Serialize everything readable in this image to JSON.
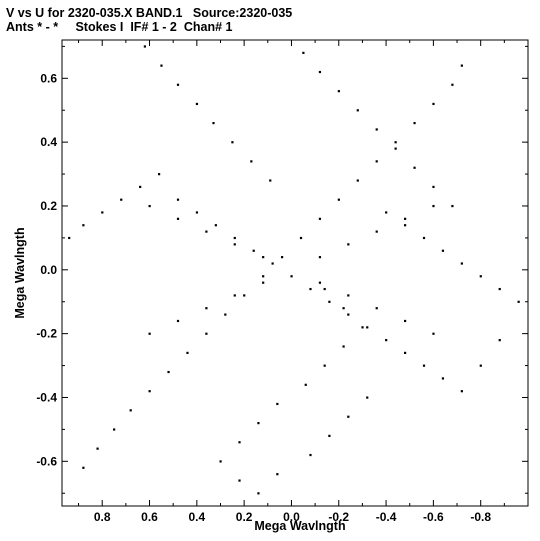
{
  "header": {
    "line1": "V vs U for 2320-035.X BAND.1   Source:2320-035",
    "line2": "Ants * - *     Stokes I  IF# 1 - 2  Chan# 1"
  },
  "chart_data": {
    "type": "scatter",
    "title": "V vs U for 2320-035.X BAND.1   Source:2320-035",
    "subtitle": "Ants * - *     Stokes I  IF# 1 - 2  Chan# 1",
    "xlabel": "Mega Wavlngth",
    "ylabel": "Mega Wavlngth",
    "xlim": [
      0.97,
      -1.0
    ],
    "ylim": [
      -0.74,
      0.72
    ],
    "x_ticks": [
      0.8,
      0.6,
      0.4,
      0.2,
      0.0,
      -0.2,
      -0.4,
      -0.6,
      -0.8
    ],
    "x_tick_labels": [
      "0.8",
      "0.6",
      "0.4",
      "0.2",
      "0.0",
      "-0.2",
      "-0.4",
      "-0.6",
      "-0.8"
    ],
    "y_ticks": [
      0.6,
      0.4,
      0.2,
      0.0,
      -0.2,
      -0.4,
      -0.6
    ],
    "y_tick_labels": [
      "0.6",
      "0.4",
      "0.2",
      "0.0",
      "-0.2",
      "-0.4",
      "-0.6"
    ],
    "grid": false,
    "marker_color": "#000000",
    "series": [
      {
        "x": [
          0.62,
          0.55,
          0.48,
          0.4,
          0.33,
          0.25,
          0.17,
          0.09,
          -0.05,
          -0.12,
          -0.2,
          -0.28,
          -0.36,
          -0.44,
          -0.52,
          -0.6,
          -0.68,
          -0.72,
          -0.68,
          -0.6,
          -0.52,
          -0.44,
          -0.36,
          -0.28,
          -0.2,
          -0.12,
          -0.04,
          0.04,
          0.12,
          0.2,
          0.28,
          0.36,
          0.44,
          0.52,
          0.6,
          0.68,
          0.75,
          0.82,
          0.88,
          0.94,
          0.88,
          0.8,
          0.72,
          0.64,
          0.56,
          0.48,
          0.4,
          0.32,
          0.24,
          0.16,
          0.08,
          0.0,
          -0.08,
          -0.16,
          -0.24,
          -0.32,
          -0.4,
          -0.48,
          -0.56,
          -0.64,
          -0.72,
          -0.8,
          -0.88,
          -0.96,
          -0.88,
          -0.8,
          -0.72,
          -0.64,
          -0.56,
          -0.48,
          -0.4,
          -0.32,
          -0.24,
          -0.16,
          -0.08,
          0.06,
          0.14,
          0.22,
          0.3,
          0.22,
          0.14,
          0.06,
          -0.06,
          -0.14,
          -0.22,
          -0.3,
          -0.22,
          -0.14,
          0.12,
          0.24,
          0.36,
          0.48,
          0.6,
          -0.12,
          -0.24,
          -0.36,
          -0.48,
          -0.6,
          0.12,
          0.24,
          0.36,
          0.48,
          0.6,
          -0.12,
          -0.24,
          -0.36,
          -0.48,
          -0.6
        ],
        "y": [
          0.7,
          0.64,
          0.58,
          0.52,
          0.46,
          0.4,
          0.34,
          0.28,
          0.68,
          0.62,
          0.56,
          0.5,
          0.44,
          0.38,
          0.32,
          0.26,
          0.2,
          0.64,
          0.58,
          0.52,
          0.46,
          0.4,
          0.34,
          0.28,
          0.22,
          0.16,
          0.1,
          0.04,
          -0.02,
          -0.08,
          -0.14,
          -0.2,
          -0.26,
          -0.32,
          -0.38,
          -0.44,
          -0.5,
          -0.56,
          -0.62,
          0.1,
          0.14,
          0.18,
          0.22,
          0.26,
          0.3,
          0.22,
          0.18,
          0.14,
          0.1,
          0.06,
          0.02,
          -0.02,
          -0.06,
          -0.1,
          -0.14,
          -0.18,
          -0.22,
          -0.26,
          -0.3,
          -0.34,
          -0.38,
          -0.3,
          -0.22,
          -0.1,
          -0.06,
          -0.02,
          0.02,
          0.06,
          0.1,
          0.14,
          0.18,
          -0.4,
          -0.46,
          -0.52,
          -0.58,
          -0.64,
          -0.7,
          -0.66,
          -0.6,
          -0.54,
          -0.48,
          -0.42,
          -0.36,
          -0.3,
          -0.24,
          -0.18,
          -0.12,
          -0.06,
          0.04,
          0.08,
          0.12,
          0.16,
          0.2,
          -0.04,
          -0.08,
          -0.12,
          -0.16,
          -0.2,
          -0.04,
          -0.08,
          -0.12,
          -0.16,
          -0.2,
          0.04,
          0.08,
          0.12,
          0.16,
          0.2
        ]
      }
    ]
  }
}
